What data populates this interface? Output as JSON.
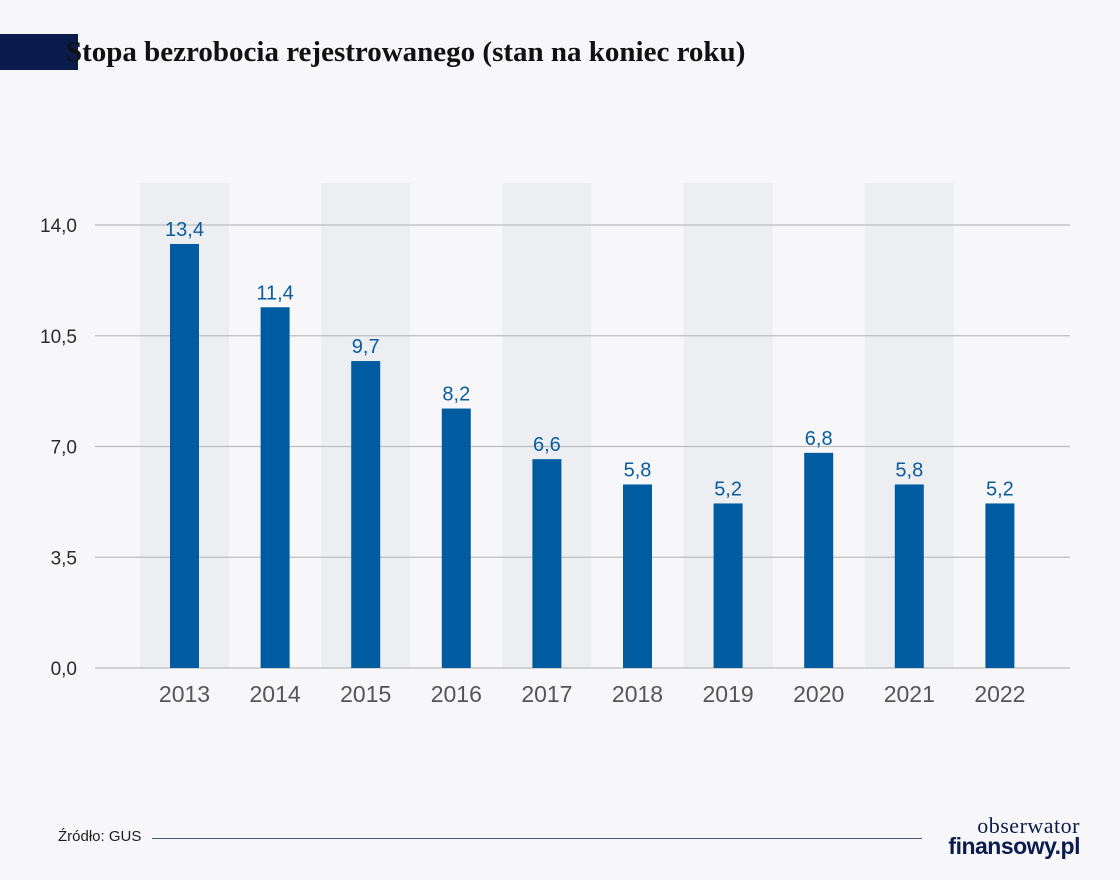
{
  "title": "Stopa bezrobocia rejestrowanego (stan na koniec roku)",
  "source": "Źródło: GUS",
  "logo": {
    "line1": "obserwator",
    "line2": "finansowy.pl"
  },
  "colors": {
    "bar": "#005ba1",
    "label": "#0a5c9e",
    "band": "#eceef2",
    "grid": "#bdbdbd",
    "title_block": "#0b1b4d"
  },
  "chart_data": {
    "type": "bar",
    "categories": [
      "2013",
      "2014",
      "2015",
      "2016",
      "2017",
      "2018",
      "2019",
      "2020",
      "2021",
      "2022"
    ],
    "values": [
      13.4,
      11.4,
      9.7,
      8.2,
      6.6,
      5.8,
      5.2,
      6.8,
      5.8,
      5.2
    ],
    "value_labels": [
      "13,4",
      "11,4",
      "9,7",
      "8,2",
      "6,6",
      "5,8",
      "5,2",
      "6,8",
      "5,8",
      "5,2"
    ],
    "yticks": [
      0,
      3.5,
      7,
      10.5,
      14
    ],
    "ytick_labels": [
      "0,0",
      "3,5",
      "7,0",
      "10,5",
      "14,0"
    ],
    "ylim": [
      0,
      14
    ],
    "grid": true,
    "alternating_bands": true
  }
}
